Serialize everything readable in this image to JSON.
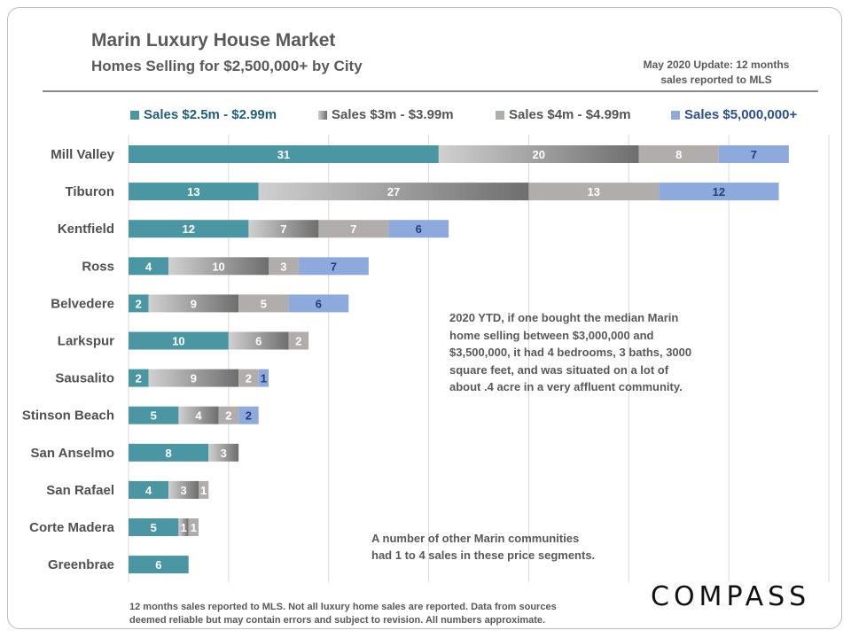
{
  "header": {
    "title": "Marin Luxury House Market",
    "subtitle": "Homes Selling for $2,500,000+ by City",
    "update_line1": "May 2020 Update: 12 months",
    "update_line2": "sales reported to MLS"
  },
  "colors": {
    "seg1": "#4a96a2",
    "seg2_light": "#d0d0d0",
    "seg2_dark": "#6e6e6e",
    "seg3": "#b2adad",
    "seg4": "#8eaadd",
    "legend_text_seg1": "#1f5f7a",
    "legend_text_seg4": "#2a4f8f",
    "legend_text_mid": "#555555"
  },
  "chart_data": {
    "type": "bar",
    "orientation": "horizontal",
    "stacked": true,
    "title": "Marin Luxury House Market",
    "subtitle": "Homes Selling for $2,500,000+ by City",
    "categories": [
      "Mill Valley",
      "Tiburon",
      "Kentfield",
      "Ross",
      "Belvedere",
      "Larkspur",
      "Sausalito",
      "Stinson Beach",
      "San Anselmo",
      "San Rafael",
      "Corte Madera",
      "Greenbrae"
    ],
    "series": [
      {
        "name": "Sales $2.5m - $2.99m",
        "values": [
          31,
          13,
          12,
          4,
          2,
          10,
          2,
          5,
          8,
          4,
          5,
          6
        ]
      },
      {
        "name": "Sales $3m - $3.99m",
        "values": [
          20,
          27,
          7,
          10,
          9,
          6,
          9,
          4,
          3,
          3,
          1,
          0
        ]
      },
      {
        "name": "Sales $4m - $4.99m",
        "values": [
          8,
          13,
          7,
          3,
          5,
          2,
          2,
          2,
          0,
          1,
          1,
          0
        ]
      },
      {
        "name": "Sales $5,000,000+",
        "values": [
          7,
          12,
          6,
          7,
          6,
          0,
          1,
          2,
          0,
          0,
          0,
          0
        ]
      }
    ],
    "xlim": [
      0,
      70
    ],
    "x_gridlines": [
      0,
      10,
      20,
      30,
      40,
      50,
      60,
      70
    ],
    "grid": true,
    "legend_position": "top"
  },
  "notes": {
    "median_home": [
      "2020 YTD, if one bought the median Marin",
      "home selling between $3,000,000 and",
      "$3,500,000, it had 4 bedrooms, 3 baths, 3000",
      "square feet, and was situated on a lot of",
      "about .4 acre in a very affluent community."
    ],
    "other_communities": [
      "A number of other Marin communities",
      "had 1 to 4 sales in these price segments."
    ]
  },
  "footer": {
    "line1": "12 months sales reported to MLS. Not all luxury home sales are reported. Data from sources",
    "line2": "deemed reliable but may contain errors and subject to revision. All numbers approximate."
  },
  "brand": {
    "logo_text": "COMPASS"
  }
}
